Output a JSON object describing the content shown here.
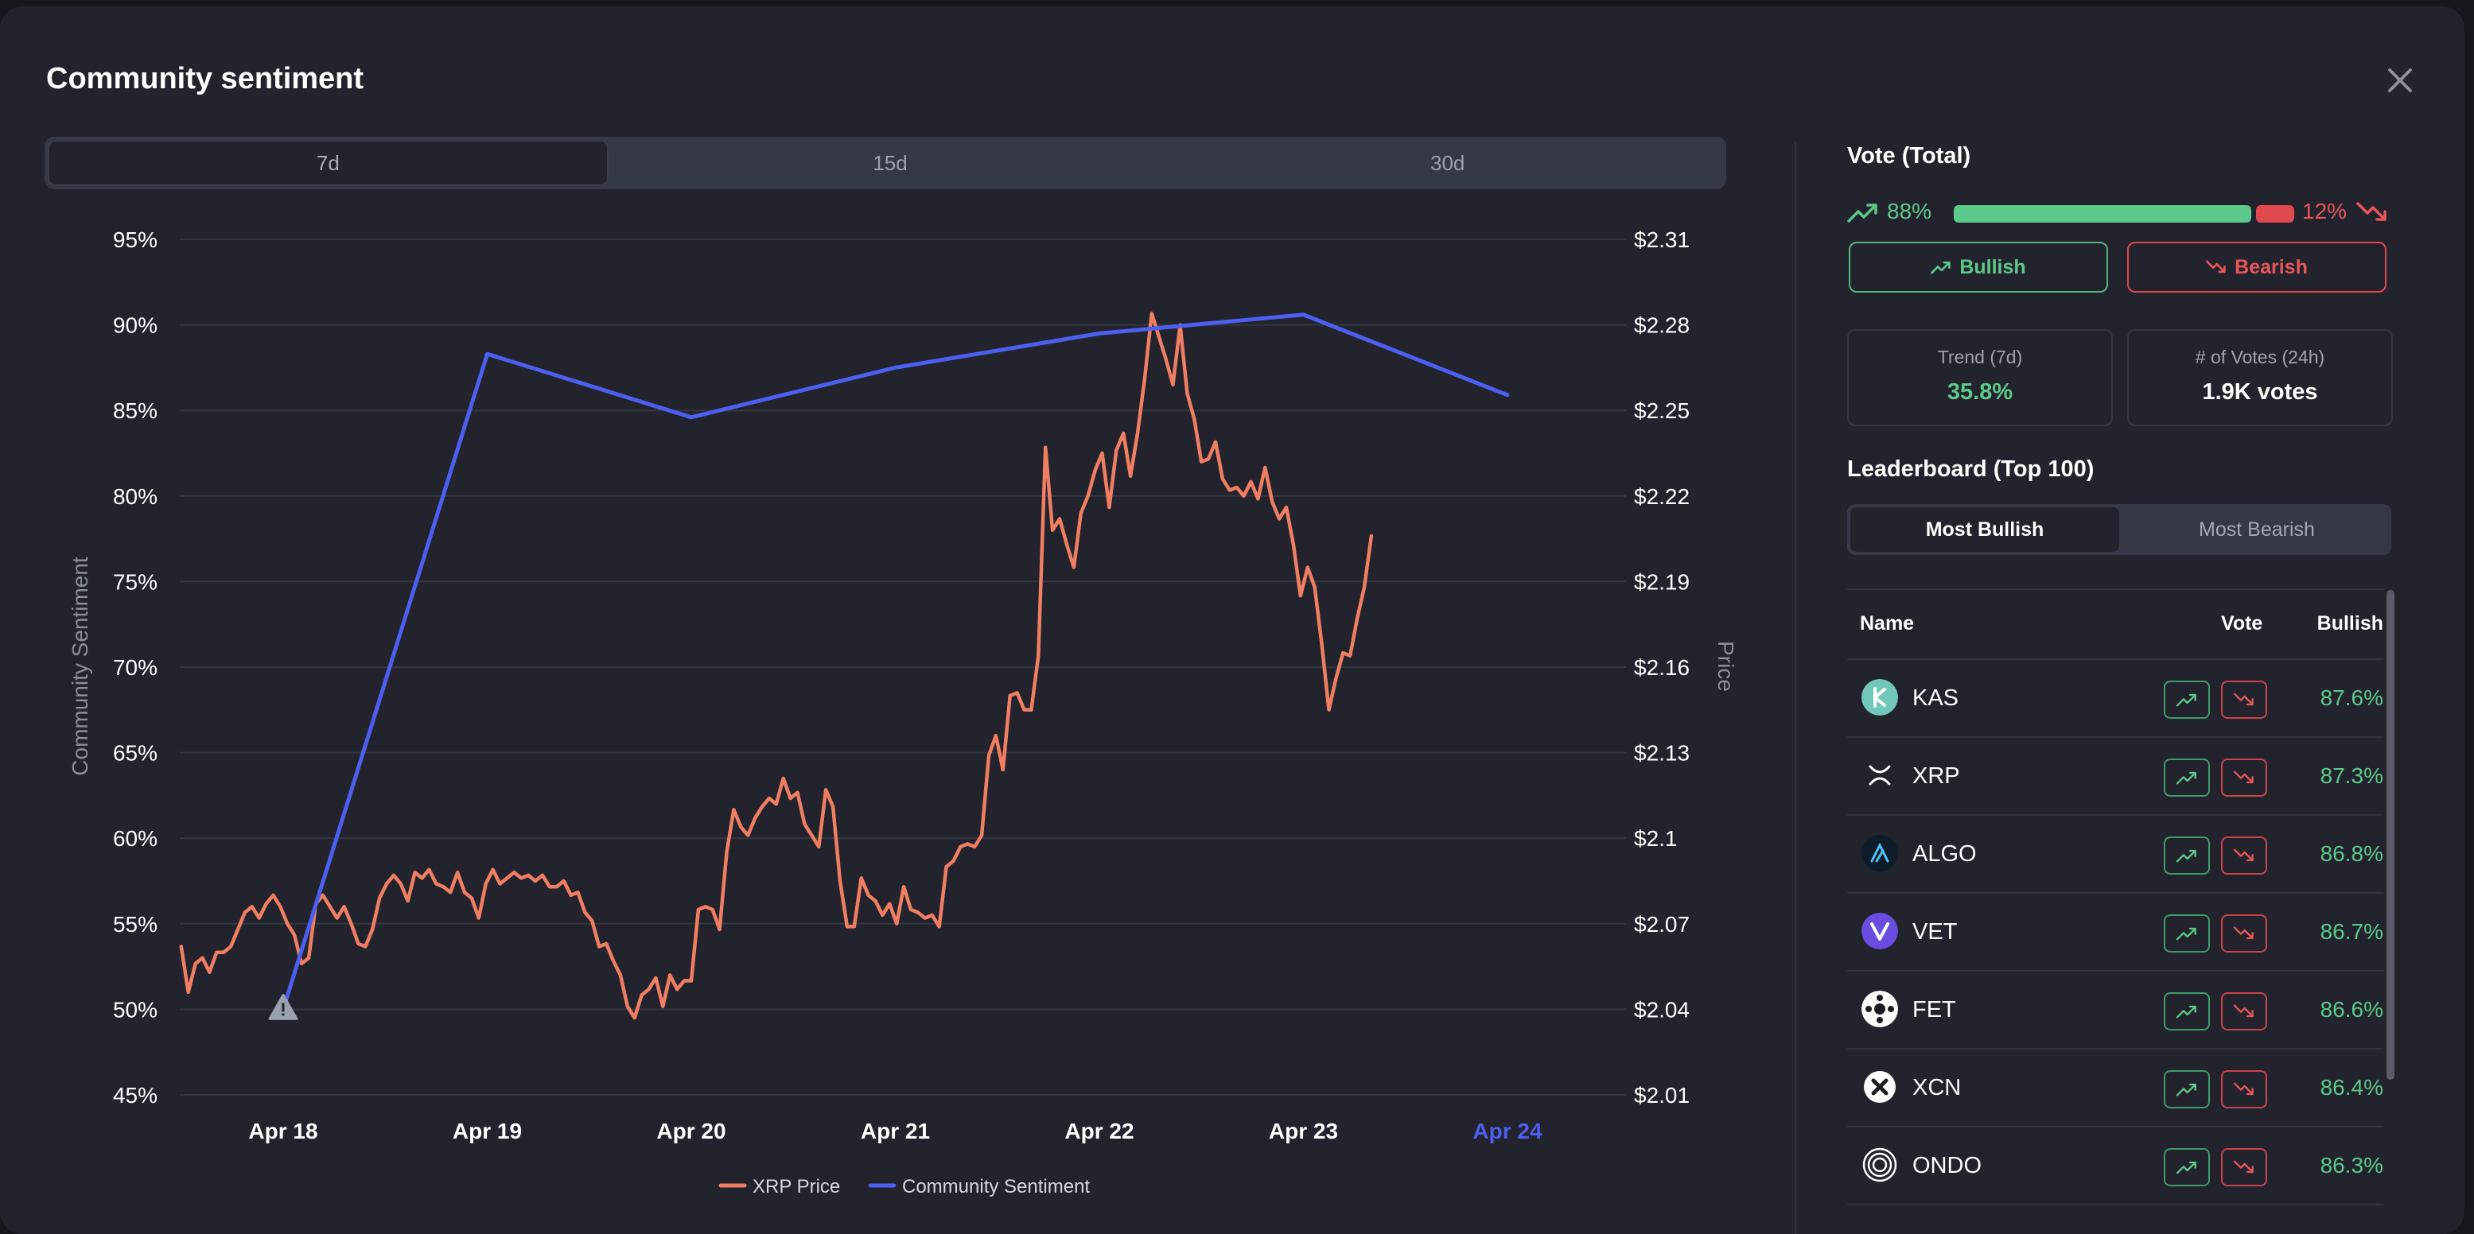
{
  "modal": {
    "title": "Community sentiment"
  },
  "range_tabs": [
    {
      "label": "7d",
      "active": true
    },
    {
      "label": "15d",
      "active": false
    },
    {
      "label": "30d",
      "active": false
    }
  ],
  "icons": {
    "close": "close-icon",
    "trend_up": "trend-up-icon",
    "trend_down": "trend-down-icon",
    "warning": "warning-icon"
  },
  "colors": {
    "bull": "#5cc98a",
    "bear": "#e04a4f",
    "price_line": "#f07e62",
    "sentiment_line": "#4c5ff0",
    "highlight_tick": "#4c5ff0"
  },
  "chart_data": {
    "type": "line",
    "xlabel": "",
    "ylabel_left": "Community Sentiment",
    "ylabel_right": "Price",
    "x_ticks": [
      "Apr 18",
      "Apr 19",
      "Apr 20",
      "Apr 21",
      "Apr 22",
      "Apr 23",
      "Apr 24"
    ],
    "highlighted_x_tick": "Apr 24",
    "y_left_ticks": [
      "95%",
      "90%",
      "85%",
      "80%",
      "75%",
      "70%",
      "65%",
      "60%",
      "55%",
      "50%",
      "45%"
    ],
    "y_left_range": [
      45,
      95
    ],
    "y_right_ticks": [
      "$2.31",
      "$2.28",
      "$2.25",
      "$2.22",
      "$2.19",
      "$2.16",
      "$2.13",
      "$2.1",
      "$2.07",
      "$2.04",
      "$2.01"
    ],
    "y_right_range": [
      2.01,
      2.31
    ],
    "grid": true,
    "legend_position": "bottom-center",
    "series": [
      {
        "name": "XRP Price",
        "axis": "right",
        "x_start": -0.5,
        "x_step": 0.03472,
        "values": [
          2.062,
          2.046,
          2.056,
          2.058,
          2.053,
          2.06,
          2.06,
          2.062,
          2.068,
          2.074,
          2.076,
          2.072,
          2.077,
          2.08,
          2.076,
          2.07,
          2.066,
          2.056,
          2.058,
          2.077,
          2.08,
          2.076,
          2.072,
          2.076,
          2.07,
          2.063,
          2.062,
          2.068,
          2.079,
          2.084,
          2.087,
          2.084,
          2.078,
          2.088,
          2.086,
          2.089,
          2.084,
          2.083,
          2.081,
          2.088,
          2.081,
          2.079,
          2.072,
          2.084,
          2.089,
          2.084,
          2.086,
          2.088,
          2.086,
          2.087,
          2.085,
          2.087,
          2.083,
          2.083,
          2.085,
          2.08,
          2.081,
          2.074,
          2.071,
          2.062,
          2.063,
          2.057,
          2.052,
          2.041,
          2.037,
          2.045,
          2.047,
          2.051,
          2.041,
          2.052,
          2.047,
          2.05,
          2.05,
          2.075,
          2.076,
          2.075,
          2.068,
          2.095,
          2.11,
          2.104,
          2.101,
          2.107,
          2.111,
          2.114,
          2.112,
          2.121,
          2.114,
          2.116,
          2.105,
          2.101,
          2.097,
          2.117,
          2.111,
          2.085,
          2.069,
          2.069,
          2.086,
          2.08,
          2.078,
          2.073,
          2.077,
          2.07,
          2.083,
          2.075,
          2.074,
          2.072,
          2.073,
          2.069,
          2.09,
          2.092,
          2.097,
          2.098,
          2.097,
          2.101,
          2.129,
          2.136,
          2.124,
          2.15,
          2.151,
          2.145,
          2.145,
          2.164,
          2.237,
          2.208,
          2.212,
          2.203,
          2.195,
          2.214,
          2.22,
          2.229,
          2.235,
          2.216,
          2.236,
          2.242,
          2.227,
          2.242,
          2.261,
          2.284,
          2.276,
          2.268,
          2.259,
          2.28,
          2.256,
          2.247,
          2.232,
          2.233,
          2.239,
          2.226,
          2.222,
          2.223,
          2.22,
          2.225,
          2.219,
          2.23,
          2.218,
          2.212,
          2.216,
          2.203,
          2.185,
          2.195,
          2.188,
          2.168,
          2.145,
          2.156,
          2.165,
          2.164,
          2.177,
          2.188,
          2.206
        ]
      },
      {
        "name": "Community Sentiment",
        "axis": "left",
        "x": [
          0,
          1,
          2,
          3,
          4,
          5,
          6
        ],
        "values": [
          50.0,
          88.3,
          84.6,
          87.5,
          89.5,
          90.6,
          85.9
        ]
      }
    ],
    "annotations": [
      {
        "type": "warning-marker",
        "x": "Apr 18"
      }
    ]
  },
  "vote_total": {
    "title": "Vote (Total)",
    "bull_pct": "88%",
    "bear_pct": "12%",
    "bull_fraction": 0.88,
    "bullish_label": "Bullish",
    "bearish_label": "Bearish"
  },
  "stats": {
    "trend_label": "Trend (7d)",
    "trend_value": "35.8%",
    "votes_label": "# of Votes (24h)",
    "votes_value": "1.9K votes"
  },
  "leaderboard": {
    "title": "Leaderboard (Top 100)",
    "tabs": [
      {
        "label": "Most Bullish",
        "active": true
      },
      {
        "label": "Most Bearish",
        "active": false
      }
    ],
    "columns": {
      "name": "Name",
      "vote": "Vote",
      "bullish": "Bullish"
    },
    "rows": [
      {
        "name": "KAS",
        "bullish": "87.6%"
      },
      {
        "name": "XRP",
        "bullish": "87.3%"
      },
      {
        "name": "ALGO",
        "bullish": "86.8%"
      },
      {
        "name": "VET",
        "bullish": "86.7%"
      },
      {
        "name": "FET",
        "bullish": "86.6%"
      },
      {
        "name": "XCN",
        "bullish": "86.4%"
      },
      {
        "name": "ONDO",
        "bullish": "86.3%"
      }
    ]
  }
}
